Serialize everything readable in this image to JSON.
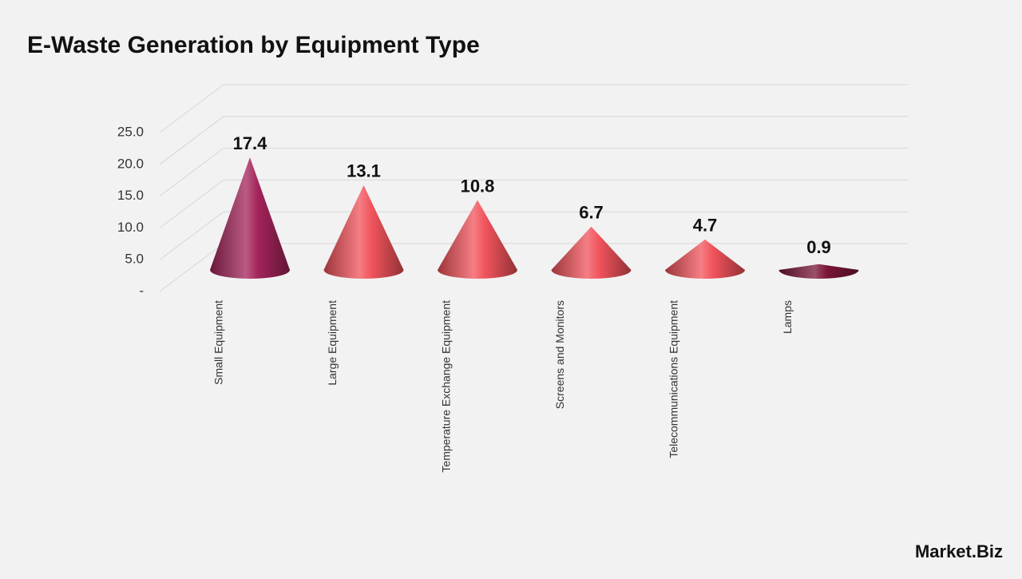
{
  "chart_data": {
    "type": "cone",
    "title": "E-Waste Generation by Equipment Type",
    "categories": [
      "Small Equipment",
      "Large Equipment",
      "Temperature Exchange Equipment",
      "Screens and Monitors",
      "Telecommunications Equipment",
      "Lamps"
    ],
    "values": [
      17.4,
      13.1,
      10.8,
      6.7,
      4.7,
      0.9
    ],
    "colors": [
      "#a3245a",
      "#f1535b",
      "#f1535b",
      "#f1535b",
      "#f1535b",
      "#7a1538"
    ],
    "ylim": [
      0,
      25
    ],
    "yticks": [
      {
        "value": 0,
        "label": "-"
      },
      {
        "value": 5,
        "label": "5.0"
      },
      {
        "value": 10,
        "label": "10.0"
      },
      {
        "value": 15,
        "label": "15.0"
      },
      {
        "value": 20,
        "label": "20.0"
      },
      {
        "value": 25,
        "label": "25.0"
      }
    ],
    "grid": true
  },
  "watermark": "Market.Biz"
}
